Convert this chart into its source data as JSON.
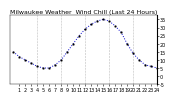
{
  "title": "Milwaukee Weather  Wind Chill (Last 24 Hours)",
  "x": [
    0,
    1,
    2,
    3,
    4,
    5,
    6,
    7,
    8,
    9,
    10,
    11,
    12,
    13,
    14,
    15,
    16,
    17,
    18,
    19,
    20,
    21,
    22,
    23,
    24
  ],
  "y": [
    15,
    12,
    10,
    8,
    6,
    5,
    5,
    7,
    10,
    15,
    20,
    25,
    29,
    32,
    34,
    35,
    34,
    31,
    27,
    20,
    14,
    10,
    7,
    6,
    5
  ],
  "line_color": "#0000cc",
  "marker_color": "#000000",
  "background_color": "#ffffff",
  "ylim": [
    -5,
    38
  ],
  "xlim": [
    -0.5,
    24
  ],
  "ytick_values": [
    35,
    30,
    25,
    20,
    15,
    10,
    5,
    0,
    -5
  ],
  "ytick_labels": [
    "35",
    "30",
    "25",
    "20",
    "15",
    "10",
    "5",
    "0",
    "-5"
  ],
  "xticks": [
    1,
    2,
    3,
    4,
    5,
    6,
    7,
    8,
    9,
    10,
    11,
    12,
    13,
    14,
    15,
    16,
    17,
    18,
    19,
    20,
    21,
    22,
    23,
    24
  ],
  "xtick_labels": [
    "1",
    "2",
    "3",
    "4",
    "5",
    "6",
    "7",
    "8",
    "9",
    "10",
    "11",
    "12",
    "13",
    "14",
    "15",
    "16",
    "17",
    "18",
    "19",
    "20",
    "21",
    "22",
    "23",
    "24"
  ],
  "title_fontsize": 4.5,
  "tick_fontsize": 3.5,
  "grid_color": "#bbbbbb",
  "grid_xticks": [
    4,
    8,
    12,
    16,
    20,
    24
  ]
}
